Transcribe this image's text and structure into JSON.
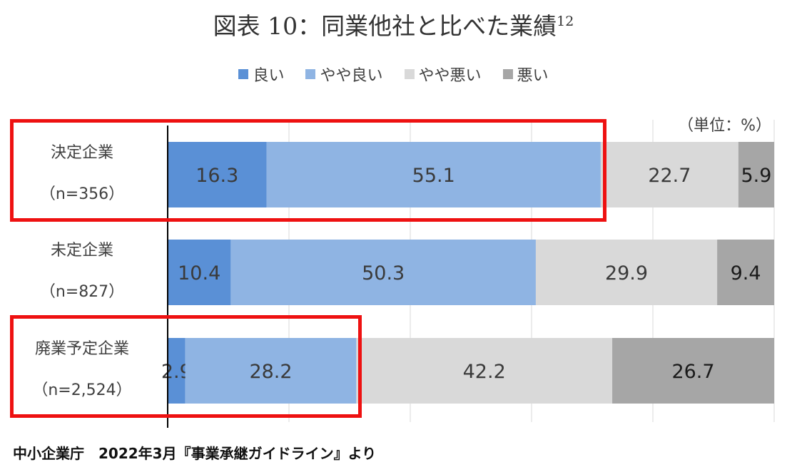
{
  "title": "図表 10：同業他社と比べた業績",
  "title_sup": "12",
  "unit_label": "（単位：%）",
  "source": "中小企業庁　2022年3月『事業承継ガイドライン』より",
  "chart_data": {
    "type": "bar",
    "orientation": "horizontal",
    "stacked": true,
    "legend_position": "top",
    "grid": true,
    "xlim": [
      0,
      100
    ],
    "categories": [
      {
        "name": "決定企業",
        "n": "（n=356）"
      },
      {
        "name": "未定企業",
        "n": "（n=827）"
      },
      {
        "name": "廃業予定企業",
        "n": "（n=2,524）"
      }
    ],
    "series": [
      {
        "name": "良い",
        "color": "#5a90d6",
        "values": [
          16.3,
          10.4,
          2.9
        ]
      },
      {
        "name": "やや良い",
        "color": "#8fb4e3",
        "values": [
          55.1,
          50.3,
          28.2
        ]
      },
      {
        "name": "やや悪い",
        "color": "#d9d9d9",
        "values": [
          22.7,
          29.9,
          42.2
        ]
      },
      {
        "name": "悪い",
        "color": "#a6a6a6",
        "values": [
          5.9,
          9.4,
          26.7
        ]
      }
    ],
    "highlighted_series_count": 2,
    "highlighted_categories": [
      0,
      2
    ]
  }
}
